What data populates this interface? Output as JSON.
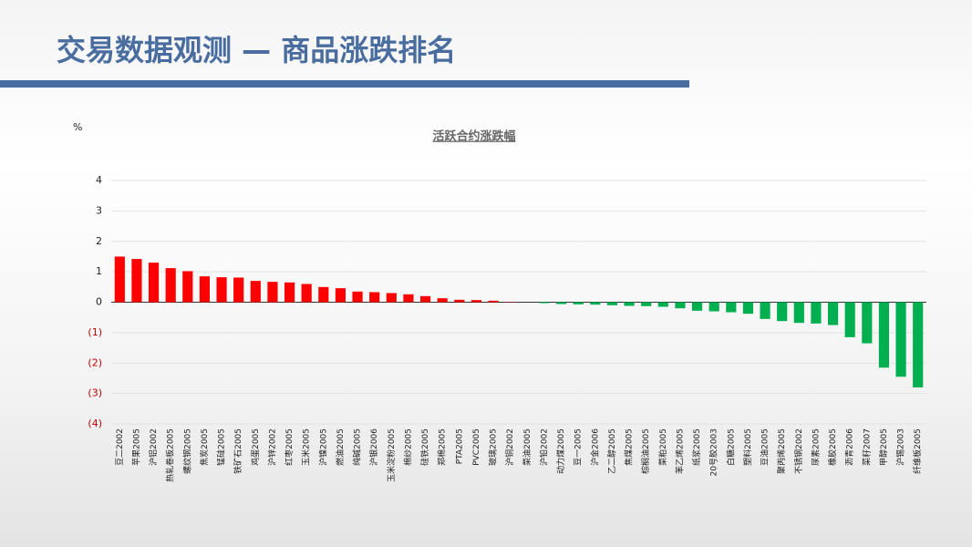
{
  "header": {
    "title": "交易数据观测 — 商品涨跌排名"
  },
  "chart_data": {
    "type": "bar",
    "title": "活跃合约涨跌幅",
    "y_unit": "%",
    "categories": [
      "豆二2002",
      "苹果2005",
      "沪铝2002",
      "热轧卷板2005",
      "螺纹钢2005",
      "焦炭2005",
      "锰硅2005",
      "铁矿石2005",
      "鸡蛋2005",
      "沪锌2002",
      "红枣2005",
      "玉米2005",
      "沪镍2005",
      "燃油2005",
      "纯碱2005",
      "沪银2006",
      "玉米淀粉2005",
      "棉纱2005",
      "硅铁2005",
      "郑棉2005",
      "PTA2005",
      "PVC2005",
      "玻璃2005",
      "沪铜2002",
      "菜油2005",
      "沪铅2002",
      "动力煤2005",
      "豆一2005",
      "沪金2006",
      "乙二醇2005",
      "焦煤2005",
      "棕榈油2005",
      "菜粕2005",
      "苯乙烯2005",
      "纸浆2005",
      "20号胶2003",
      "白糖2005",
      "塑料2005",
      "豆油2005",
      "聚丙烯2005",
      "不锈钢2002",
      "尿素2005",
      "橡胶2005",
      "沥青2006",
      "菜籽2007",
      "甲醇2005",
      "沪锡2003",
      "纤维板2005"
    ],
    "values": [
      1.5,
      1.42,
      1.3,
      1.12,
      1.02,
      0.85,
      0.82,
      0.81,
      0.7,
      0.67,
      0.65,
      0.6,
      0.5,
      0.46,
      0.35,
      0.33,
      0.3,
      0.26,
      0.2,
      0.13,
      0.08,
      0.07,
      0.05,
      0.01,
      0,
      -0.03,
      -0.06,
      -0.07,
      -0.08,
      -0.1,
      -0.12,
      -0.13,
      -0.15,
      -0.2,
      -0.28,
      -0.3,
      -0.33,
      -0.38,
      -0.55,
      -0.62,
      -0.68,
      -0.7,
      -0.75,
      -1.15,
      -1.35,
      -2.15,
      -2.45,
      -2.8
    ],
    "positive_color": "#ff0000",
    "negative_color": "#00b050",
    "negative_tick_color": "#c00000",
    "ylim": [
      -4,
      4
    ],
    "yticks": [
      4,
      3,
      2,
      1,
      0,
      {
        "value": -1,
        "label": "(1)"
      },
      {
        "value": -2,
        "label": "(2)"
      },
      {
        "value": -3,
        "label": "(3)"
      },
      {
        "value": -4,
        "label": "(4)"
      }
    ],
    "grid": true
  }
}
